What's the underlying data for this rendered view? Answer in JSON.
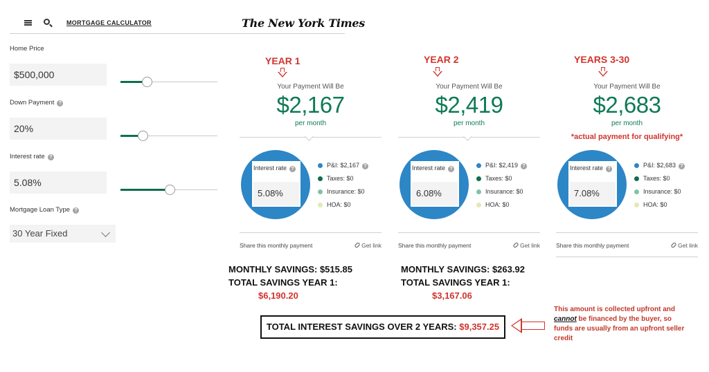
{
  "header": {
    "menu_icon": "hamburger-menu-icon",
    "search_icon": "search-icon",
    "title": "MORTGAGE CALCULATOR",
    "logo": "The New York Times"
  },
  "form": {
    "home_price": {
      "label": "Home Price",
      "value": "$500,000",
      "slider_fraction": 0.27
    },
    "down_payment": {
      "label": "Down Payment",
      "value": "20%",
      "slider_fraction": 0.23
    },
    "interest_rate": {
      "label": "Interest rate",
      "value": "5.08%",
      "slider_fraction": 0.51
    },
    "loan_type": {
      "label": "Mortgage Loan Type",
      "value": "30 Year Fixed"
    },
    "help_icon": "?"
  },
  "panels": [
    {
      "title": "YEAR 1",
      "pay_label": "Your Payment Will Be",
      "amount": "$2,167",
      "per_month": "per month",
      "rate_label": "Interest rate",
      "rate_value": "5.08%",
      "legend": [
        "P&I: $2,167",
        "Taxes: $0",
        "Insurance: $0",
        "HOA: $0"
      ],
      "share": "Share this monthly payment",
      "get_link": "Get link"
    },
    {
      "title": "YEAR 2",
      "pay_label": "Your Payment Will Be",
      "amount": "$2,419",
      "per_month": "per month",
      "rate_label": "Interest rate",
      "rate_value": "6.08%",
      "legend": [
        "P&I: $2,419",
        "Taxes: $0",
        "Insurance: $0",
        "HOA: $0"
      ],
      "share": "Share this monthly payment",
      "get_link": "Get link"
    },
    {
      "title": "YEARS 3-30",
      "pay_label": "Your Payment Will Be",
      "amount": "$2,683",
      "per_month": "per month",
      "note": "*actual payment for qualifying*",
      "rate_label": "Interest rate",
      "rate_value": "7.08%",
      "legend": [
        "P&I: $2,683",
        "Taxes: $0",
        "Insurance: $0",
        "HOA: $0"
      ],
      "share": "Share this monthly payment",
      "get_link": "Get link"
    }
  ],
  "legend_colors": [
    "#2d86c6",
    "#0f6e4f",
    "#7fc3a8",
    "#e4e8b5"
  ],
  "savings": [
    {
      "monthly": "MONTHLY SAVINGS: $515.85",
      "total_label": "TOTAL SAVINGS YEAR 1:",
      "total_value": "$6,190.20"
    },
    {
      "monthly": "MONTHLY SAVINGS: $263.92",
      "total_label": "TOTAL SAVINGS YEAR 1:",
      "total_value": "$3,167.06"
    }
  ],
  "total": {
    "label": "TOTAL INTEREST SAVINGS OVER 2 YEARS:",
    "value": "$9,357.25"
  },
  "note": {
    "before": "This amount is collected upfront and ",
    "emphasis": "cannot",
    "after": " be financed by the buyer, so funds are usually from an upfront seller credit"
  }
}
